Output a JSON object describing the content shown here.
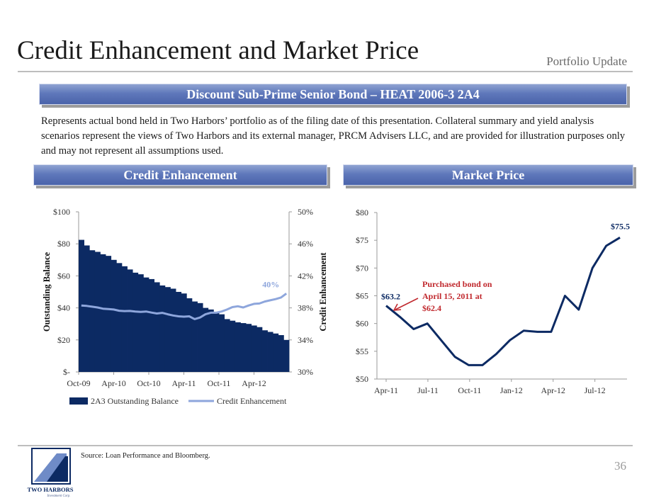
{
  "header": {
    "title": "Credit Enhancement and Market Price",
    "section": "Portfolio Update"
  },
  "banners": {
    "main": "Discount Sub-Prime Senior Bond – HEAT 2006-3 2A4",
    "left": "Credit Enhancement",
    "right": "Market Price"
  },
  "intro": "Represents actual bond held in Two Harbors’ portfolio as of the filing date of this presentation.  Collateral summary and yield analysis scenarios represent the views of Two Harbors and its external manager, PRCM Advisers LLC, and are provided for illustration purposes only and may not represent all assumptions used.",
  "footer": {
    "source": "Source: Loan Performance and Bloomberg.",
    "page": "36",
    "logo_text": "TWO HARBORS",
    "logo_subtext": "Investment Corp."
  },
  "colors": {
    "navy": "#0c2a63",
    "banner": "#5f78bb",
    "light_line": "#8ea6dc",
    "annotation_red": "#c0282d"
  },
  "chart_data": [
    {
      "type": "bar",
      "title": "Credit Enhancement",
      "x_tick_labels": [
        "Oct-09",
        "Apr-10",
        "Oct-10",
        "Apr-11",
        "Oct-11",
        "Apr-12"
      ],
      "y_left": {
        "label": "Outstanding Balance",
        "range": [
          0,
          100
        ],
        "tick_values": [
          0,
          20,
          40,
          60,
          80,
          100
        ],
        "tick_labels": [
          "$-",
          "$20",
          "$40",
          "$60",
          "$80",
          "$100"
        ]
      },
      "y_right": {
        "label": "Credit Enhancement",
        "range": [
          30,
          50
        ],
        "tick_values": [
          30,
          34,
          38,
          42,
          46,
          50
        ],
        "tick_labels": [
          "30%",
          "34%",
          "38%",
          "42%",
          "46%",
          "50%"
        ]
      },
      "series": [
        {
          "name": "2A3 Outstanding Balance",
          "type": "bar",
          "axis": "left",
          "color": "#0c2a63",
          "values": [
            82.5,
            79,
            76,
            75,
            73.5,
            72.5,
            70,
            68,
            66,
            64,
            62,
            61,
            59,
            58,
            56,
            54,
            53,
            52,
            50,
            49,
            46,
            44,
            43,
            40,
            39,
            37,
            36,
            33,
            32,
            31,
            30.5,
            30,
            29,
            28,
            26,
            25,
            24,
            23,
            20
          ]
        },
        {
          "name": "Credit Enhancement",
          "type": "line",
          "axis": "right",
          "color": "#8ea6dc",
          "values": [
            38.3,
            38.25,
            38.15,
            38.05,
            37.9,
            37.85,
            37.8,
            37.65,
            37.6,
            37.62,
            37.55,
            37.5,
            37.55,
            37.42,
            37.3,
            37.38,
            37.2,
            37.05,
            36.95,
            36.9,
            36.95,
            36.6,
            36.8,
            37.2,
            37.4,
            37.4,
            37.55,
            37.8,
            38.1,
            38.2,
            38.05,
            38.3,
            38.5,
            38.55,
            38.8,
            38.95,
            39.1,
            39.3,
            39.8
          ]
        }
      ],
      "annotations": [
        {
          "label": "40%"
        }
      ],
      "legend_position": "bottom"
    },
    {
      "type": "line",
      "title": "Market Price",
      "x_tick_labels": [
        "Apr-11",
        "Jul-11",
        "Oct-11",
        "Jan-12",
        "Apr-12",
        "Jul-12"
      ],
      "ylim": [
        50,
        80
      ],
      "y_tick_values": [
        50,
        55,
        60,
        65,
        70,
        75,
        80
      ],
      "y_tick_labels": [
        "$50",
        "$55",
        "$60",
        "$65",
        "$70",
        "$75",
        "$80"
      ],
      "series": [
        {
          "name": "Market Price",
          "color": "#0c2a63",
          "values": [
            63.2,
            61.2,
            59,
            60,
            57,
            54,
            52.5,
            52.5,
            54.5,
            57,
            58.7,
            58.5,
            58.5,
            65,
            62.5,
            70,
            74,
            75.5
          ]
        }
      ],
      "annotations": [
        {
          "label": "$63.2"
        },
        {
          "label": "$75.5"
        },
        {
          "label": "Purchased bond on April 15, 2011 at $62.4"
        }
      ]
    }
  ]
}
